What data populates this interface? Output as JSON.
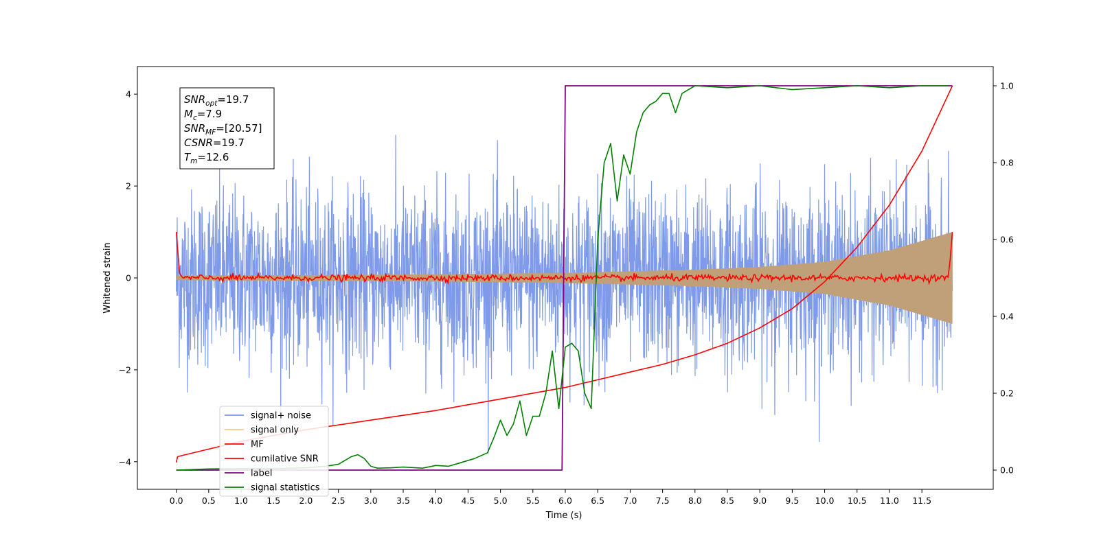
{
  "chart_data": {
    "type": "line",
    "xlabel": "Time (s)",
    "ylabel_left": "Whitened strain",
    "ylabel_right": "",
    "x_ticks": [
      "0.0",
      "0.5",
      "1.0",
      "1.5",
      "2.0",
      "2.5",
      "3.0",
      "3.5",
      "4.0",
      "4.5",
      "5.0",
      "5.5",
      "6.0",
      "6.5",
      "7.0",
      "7.5",
      "8.0",
      "8.5",
      "9.0",
      "9.5",
      "10.0",
      "10.5",
      "11.0",
      "11.5"
    ],
    "x_tick_values": [
      0.0,
      0.5,
      1.0,
      1.5,
      2.0,
      2.5,
      3.0,
      3.5,
      4.0,
      4.5,
      5.0,
      5.5,
      6.0,
      6.5,
      7.0,
      7.5,
      8.0,
      8.5,
      9.0,
      9.5,
      10.0,
      10.5,
      11.0,
      11.5
    ],
    "xlim": [
      -0.6,
      12.6
    ],
    "y_left_ticks": [
      -4,
      -2,
      0,
      2,
      4
    ],
    "y_left_lim": [
      -4.6,
      4.6
    ],
    "y_right_ticks": [
      0.0,
      0.2,
      0.4,
      0.6,
      0.8,
      1.0
    ],
    "y_right_tick_labels": [
      "0.0",
      "0.2",
      "0.4",
      "0.6",
      "0.8",
      "1.0"
    ],
    "y_right_lim": [
      -0.05,
      1.05
    ],
    "grid": false,
    "legend_placement": "lower-left",
    "annotation": {
      "lines": [
        {
          "base": "SNR",
          "sub": "opt",
          "value": "=19.7"
        },
        {
          "base": "M",
          "sub": "c",
          "value": "=7.9"
        },
        {
          "base": "SNR",
          "sub": "MF",
          "value": "=[20.57]"
        },
        {
          "base": "CSNR",
          "sub": "",
          "value": "=19.7"
        },
        {
          "base": "T",
          "sub": "m",
          "value": "=12.6"
        }
      ]
    },
    "series": [
      {
        "name": "signal+ noise",
        "axis": "left",
        "color": "#7795e8",
        "style": "noise-band",
        "x_range": [
          0.0,
          11.97
        ],
        "typical_envelope": [
          -2.0,
          2.0
        ],
        "peaks": [
          4.1,
          -4.1
        ]
      },
      {
        "name": "signal only",
        "axis": "left",
        "color": "#ffc87c",
        "style": "chirp",
        "x": [
          0.0,
          2.0,
          4.0,
          6.0,
          8.0,
          9.0,
          10.0,
          11.0,
          11.97
        ],
        "amplitude": [
          0.05,
          0.06,
          0.08,
          0.11,
          0.18,
          0.24,
          0.35,
          0.6,
          1.0
        ]
      },
      {
        "name": "MF",
        "axis": "left",
        "color": "#ff0000",
        "style": "noisy-flat",
        "x": [
          0.0,
          0.05,
          0.1,
          11.9,
          11.93,
          11.97
        ],
        "y": [
          1.0,
          0.1,
          0.0,
          0.0,
          0.3,
          1.0
        ]
      },
      {
        "name": "cumilative SNR",
        "axis": "right",
        "color": "#ff0000",
        "style": "line",
        "x": [
          0.0,
          0.02,
          1.0,
          2.0,
          3.0,
          4.0,
          5.0,
          6.0,
          6.5,
          7.0,
          7.5,
          8.0,
          8.5,
          9.0,
          9.5,
          10.0,
          10.5,
          11.0,
          11.5,
          11.97
        ],
        "y": [
          0.02,
          0.035,
          0.075,
          0.105,
          0.13,
          0.155,
          0.185,
          0.215,
          0.235,
          0.255,
          0.275,
          0.3,
          0.33,
          0.37,
          0.42,
          0.49,
          0.58,
          0.69,
          0.83,
          1.0
        ]
      },
      {
        "name": "label",
        "axis": "right",
        "color": "#800080",
        "style": "line",
        "x": [
          0.0,
          5.95,
          6.0,
          11.97
        ],
        "y": [
          0.0,
          0.0,
          1.0,
          1.0
        ]
      },
      {
        "name": "signal statistics",
        "axis": "right",
        "color": "#008000",
        "style": "line",
        "x": [
          0.0,
          0.5,
          1.0,
          1.5,
          2.0,
          2.3,
          2.5,
          2.7,
          2.8,
          2.9,
          3.0,
          3.1,
          3.3,
          3.5,
          3.8,
          4.0,
          4.2,
          4.4,
          4.6,
          4.8,
          4.9,
          5.0,
          5.1,
          5.2,
          5.3,
          5.4,
          5.5,
          5.6,
          5.7,
          5.8,
          5.9,
          6.0,
          6.1,
          6.2,
          6.3,
          6.4,
          6.5,
          6.6,
          6.7,
          6.8,
          6.9,
          7.0,
          7.1,
          7.2,
          7.3,
          7.4,
          7.5,
          7.6,
          7.7,
          7.8,
          7.9,
          8.0,
          8.5,
          9.0,
          9.5,
          10.0,
          10.5,
          11.0,
          11.5,
          11.9
        ],
        "y": [
          0.0,
          0.003,
          0.004,
          0.004,
          0.006,
          0.01,
          0.015,
          0.035,
          0.04,
          0.03,
          0.01,
          0.005,
          0.006,
          0.008,
          0.005,
          0.012,
          0.01,
          0.02,
          0.03,
          0.045,
          0.085,
          0.13,
          0.09,
          0.12,
          0.18,
          0.09,
          0.14,
          0.14,
          0.2,
          0.31,
          0.16,
          0.32,
          0.33,
          0.31,
          0.2,
          0.16,
          0.6,
          0.8,
          0.85,
          0.7,
          0.82,
          0.77,
          0.88,
          0.93,
          0.95,
          0.96,
          0.98,
          0.98,
          0.93,
          0.98,
          0.99,
          1.0,
          0.995,
          1.0,
          0.99,
          0.995,
          1.0,
          0.995,
          1.0,
          1.0
        ]
      }
    ]
  }
}
